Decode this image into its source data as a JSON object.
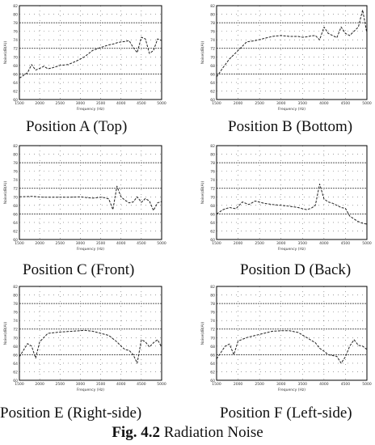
{
  "figure": {
    "label": "Fig. 4.2",
    "title": "Radiation Noise"
  },
  "colors": {
    "line": "#222222",
    "grid": "#000000",
    "axis": "#000000",
    "tick_text": "#333333"
  },
  "axes": {
    "xlabel": "Frequency (Hz)",
    "ylabel": "Noise(dB(A))",
    "x_tick_labels": [
      "1500",
      "2000",
      "2500",
      "3000",
      "3500",
      "4000",
      "4500",
      "5000"
    ],
    "y_tick_labels": [
      "60",
      "62",
      "64",
      "66",
      "68",
      "70",
      "72",
      "74",
      "76",
      "78",
      "80",
      "82"
    ]
  },
  "chart_data": [
    {
      "type": "line",
      "caption": "Position A (Top)",
      "xlim": [
        1500,
        5000
      ],
      "ylim": [
        60,
        82
      ],
      "x": [
        1500,
        1700,
        1800,
        1900,
        2000,
        2100,
        2200,
        2300,
        2500,
        2700,
        2900,
        3100,
        3300,
        3500,
        3700,
        3800,
        3900,
        4000,
        4100,
        4200,
        4300,
        4400,
        4500,
        4600,
        4700,
        4800,
        4900,
        5000
      ],
      "y": [
        65.0,
        66.3,
        68.2,
        66.9,
        67.3,
        67.8,
        67.2,
        67.4,
        68.0,
        68.2,
        69.0,
        70.0,
        71.5,
        72.2,
        72.8,
        73.0,
        73.3,
        73.5,
        73.6,
        73.8,
        72.2,
        71.0,
        74.6,
        74.2,
        70.8,
        71.5,
        74.2,
        73.8
      ]
    },
    {
      "type": "line",
      "caption": "Position B (Bottom)",
      "xlim": [
        1500,
        5000
      ],
      "ylim": [
        60,
        82
      ],
      "x": [
        1500,
        1650,
        1800,
        2000,
        2200,
        2400,
        2600,
        2800,
        3000,
        3200,
        3400,
        3500,
        3600,
        3700,
        3800,
        3900,
        4000,
        4100,
        4200,
        4300,
        4400,
        4500,
        4600,
        4700,
        4800,
        4900,
        5000
      ],
      "y": [
        65.3,
        67.5,
        69.5,
        71.5,
        73.5,
        73.8,
        74.3,
        74.8,
        75.0,
        74.8,
        74.8,
        74.6,
        74.7,
        74.9,
        75.0,
        74.0,
        77.0,
        75.5,
        75.0,
        74.5,
        77.0,
        75.5,
        75.0,
        76.0,
        77.0,
        81.0,
        75.5
      ]
    },
    {
      "type": "line",
      "caption": "Position C (Front)",
      "xlim": [
        1500,
        5000
      ],
      "ylim": [
        60,
        82
      ],
      "x": [
        1500,
        1800,
        2100,
        2400,
        2700,
        3000,
        3300,
        3500,
        3600,
        3700,
        3800,
        3900,
        4000,
        4100,
        4200,
        4300,
        4400,
        4500,
        4600,
        4700,
        4800,
        4900,
        5000
      ],
      "y": [
        70.0,
        70.1,
        69.9,
        69.9,
        69.9,
        70.0,
        69.7,
        69.9,
        69.8,
        69.5,
        67.0,
        72.5,
        70.0,
        69.2,
        68.6,
        68.8,
        70.0,
        68.7,
        69.6,
        69.0,
        66.8,
        68.6,
        68.9
      ]
    },
    {
      "type": "line",
      "caption": "Position D (Back)",
      "xlim": [
        1500,
        5000
      ],
      "ylim": [
        60,
        82
      ],
      "x": [
        1500,
        1650,
        1800,
        1950,
        2100,
        2250,
        2400,
        2600,
        2800,
        3000,
        3200,
        3400,
        3500,
        3600,
        3700,
        3800,
        3900,
        4000,
        4100,
        4200,
        4300,
        4400,
        4500,
        4600,
        4700,
        4800,
        4900,
        5000
      ],
      "y": [
        66.0,
        67.0,
        67.5,
        67.2,
        68.8,
        68.2,
        69.0,
        68.5,
        68.2,
        68.0,
        67.8,
        67.5,
        67.2,
        67.0,
        67.3,
        68.0,
        73.0,
        69.5,
        68.8,
        68.5,
        68.0,
        67.5,
        67.3,
        65.5,
        64.8,
        64.2,
        63.8,
        63.6
      ]
    },
    {
      "type": "line",
      "caption": "Position E (Right-side)",
      "xlim": [
        1500,
        5000
      ],
      "ylim": [
        60,
        82
      ],
      "x": [
        1500,
        1700,
        1800,
        1900,
        2000,
        2200,
        2500,
        2800,
        3100,
        3300,
        3500,
        3700,
        3900,
        4000,
        4100,
        4200,
        4300,
        4400,
        4500,
        4600,
        4700,
        4800,
        4900,
        5000
      ],
      "y": [
        65.5,
        68.6,
        68.0,
        65.2,
        69.0,
        71.0,
        71.3,
        71.5,
        71.7,
        71.5,
        71.0,
        70.5,
        69.0,
        68.0,
        67.2,
        67.0,
        66.0,
        64.0,
        69.5,
        69.0,
        67.8,
        68.8,
        69.5,
        67.8
      ]
    },
    {
      "type": "line",
      "caption": "Position F (Left-side)",
      "xlim": [
        1500,
        5000
      ],
      "ylim": [
        60,
        82
      ],
      "x": [
        1500,
        1700,
        1800,
        1900,
        2000,
        2200,
        2400,
        2600,
        2800,
        3000,
        3200,
        3400,
        3600,
        3800,
        3900,
        4000,
        4100,
        4200,
        4300,
        4400,
        4500,
        4600,
        4700,
        4800,
        4900,
        5000
      ],
      "y": [
        65.0,
        68.0,
        68.5,
        66.0,
        69.2,
        70.0,
        70.5,
        71.0,
        71.5,
        71.6,
        71.6,
        71.2,
        70.0,
        68.8,
        67.5,
        66.8,
        66.0,
        65.8,
        65.6,
        64.0,
        65.5,
        68.0,
        69.5,
        68.2,
        68.0,
        67.2
      ]
    }
  ]
}
